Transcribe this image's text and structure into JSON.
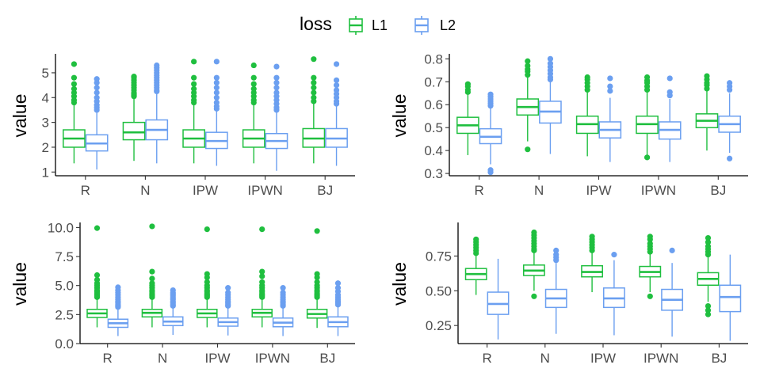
{
  "legend": {
    "title": "loss",
    "entries": [
      {
        "label": "L1",
        "color": "#1fbf3f"
      },
      {
        "label": "L2",
        "color": "#6b9ff0"
      }
    ]
  },
  "chart_data": [
    {
      "type": "boxplot",
      "panel": "top-left",
      "ylabel": "value",
      "xlabel": "",
      "categories": [
        "R",
        "N",
        "IPW",
        "IPWN",
        "BJ"
      ],
      "ylim": [
        0.85,
        5.7
      ],
      "yticks": [
        1,
        2,
        3,
        4,
        5
      ],
      "series": [
        {
          "name": "L1",
          "boxes": [
            {
              "q1": 2.0,
              "med": 2.35,
              "q3": 2.7,
              "lo": 1.35,
              "hi": 3.75,
              "out": [
                3.8,
                3.9,
                4.05,
                4.2,
                4.35,
                4.55,
                4.8,
                5.35
              ]
            },
            {
              "q1": 2.3,
              "med": 2.6,
              "q3": 3.0,
              "lo": 1.45,
              "hi": 4.0,
              "out": [
                4.05,
                4.1,
                4.15,
                4.2,
                4.3,
                4.4,
                4.5,
                4.6,
                4.7,
                4.8,
                4.85
              ]
            },
            {
              "q1": 2.0,
              "med": 2.35,
              "q3": 2.7,
              "lo": 1.35,
              "hi": 3.75,
              "out": [
                3.8,
                3.9,
                4.05,
                4.2,
                4.35,
                4.55,
                4.8,
                5.45
              ]
            },
            {
              "q1": 2.0,
              "med": 2.35,
              "q3": 2.7,
              "lo": 1.35,
              "hi": 3.75,
              "out": [
                3.8,
                3.9,
                4.05,
                4.2,
                4.35,
                4.55,
                4.8,
                5.3
              ]
            },
            {
              "q1": 2.0,
              "med": 2.35,
              "q3": 2.75,
              "lo": 1.35,
              "hi": 3.8,
              "out": [
                3.85,
                4.0,
                4.2,
                4.4,
                4.6,
                4.8,
                5.55
              ]
            }
          ]
        },
        {
          "name": "L2",
          "boxes": [
            {
              "q1": 1.85,
              "med": 2.15,
              "q3": 2.5,
              "lo": 1.1,
              "hi": 3.45,
              "out": [
                3.5,
                3.6,
                3.7,
                3.85,
                4.0,
                4.2,
                4.4,
                4.6,
                4.75
              ]
            },
            {
              "q1": 2.3,
              "med": 2.7,
              "q3": 3.1,
              "lo": 1.35,
              "hi": 4.2,
              "out": [
                4.25,
                4.3,
                4.4,
                4.5,
                4.6,
                4.7,
                4.8,
                4.9,
                5.0,
                5.1,
                5.2,
                5.3
              ]
            },
            {
              "q1": 1.95,
              "med": 2.25,
              "q3": 2.6,
              "lo": 1.25,
              "hi": 3.5,
              "out": [
                3.55,
                3.65,
                3.8,
                4.0,
                4.2,
                4.4,
                4.6,
                4.8,
                5.45
              ]
            },
            {
              "q1": 1.95,
              "med": 2.25,
              "q3": 2.55,
              "lo": 1.05,
              "hi": 3.45,
              "out": [
                3.5,
                3.6,
                3.75,
                3.9,
                4.05,
                4.2,
                4.4,
                4.6,
                4.8,
                5.25
              ]
            },
            {
              "q1": 2.0,
              "med": 2.35,
              "q3": 2.75,
              "lo": 1.25,
              "hi": 3.7,
              "out": [
                3.75,
                3.85,
                4.0,
                4.15,
                4.3,
                4.5,
                4.7,
                5.35
              ]
            }
          ]
        }
      ]
    },
    {
      "type": "boxplot",
      "panel": "top-right",
      "ylabel": "value",
      "xlabel": "",
      "categories": [
        "R",
        "N",
        "IPW",
        "IPWN",
        "BJ"
      ],
      "ylim": [
        0.29,
        0.815
      ],
      "yticks": [
        0.3,
        0.4,
        0.5,
        0.6,
        0.7,
        0.8
      ],
      "series": [
        {
          "name": "L1",
          "boxes": [
            {
              "q1": 0.475,
              "med": 0.51,
              "q3": 0.545,
              "lo": 0.38,
              "hi": 0.645,
              "out": [
                0.655,
                0.665,
                0.68,
                0.69
              ]
            },
            {
              "q1": 0.555,
              "med": 0.59,
              "q3": 0.625,
              "lo": 0.44,
              "hi": 0.725,
              "out": [
                0.73,
                0.745,
                0.755,
                0.77,
                0.79,
                0.405
              ]
            },
            {
              "q1": 0.475,
              "med": 0.515,
              "q3": 0.55,
              "lo": 0.375,
              "hi": 0.655,
              "out": [
                0.665,
                0.68,
                0.695,
                0.71,
                0.72
              ]
            },
            {
              "q1": 0.475,
              "med": 0.515,
              "q3": 0.55,
              "lo": 0.38,
              "hi": 0.655,
              "out": [
                0.665,
                0.68,
                0.695,
                0.705,
                0.72,
                0.37
              ]
            },
            {
              "q1": 0.5,
              "med": 0.53,
              "q3": 0.56,
              "lo": 0.4,
              "hi": 0.66,
              "out": [
                0.67,
                0.685,
                0.695,
                0.71,
                0.725
              ]
            }
          ]
        },
        {
          "name": "L2",
          "boxes": [
            {
              "q1": 0.43,
              "med": 0.46,
              "q3": 0.495,
              "lo": 0.34,
              "hi": 0.585,
              "out": [
                0.595,
                0.605,
                0.615,
                0.625,
                0.635,
                0.645,
                0.315,
                0.305
              ]
            },
            {
              "q1": 0.52,
              "med": 0.57,
              "q3": 0.615,
              "lo": 0.385,
              "hi": 0.7,
              "out": [
                0.71,
                0.72,
                0.735,
                0.75,
                0.765,
                0.78,
                0.8
              ]
            },
            {
              "q1": 0.455,
              "med": 0.49,
              "q3": 0.525,
              "lo": 0.35,
              "hi": 0.63,
              "out": [
                0.66,
                0.68,
                0.715
              ]
            },
            {
              "q1": 0.45,
              "med": 0.49,
              "q3": 0.525,
              "lo": 0.35,
              "hi": 0.625,
              "out": [
                0.64,
                0.655,
                0.715
              ]
            },
            {
              "q1": 0.48,
              "med": 0.515,
              "q3": 0.55,
              "lo": 0.39,
              "hi": 0.65,
              "out": [
                0.665,
                0.68,
                0.695,
                0.365
              ]
            }
          ]
        }
      ]
    },
    {
      "type": "boxplot",
      "panel": "bottom-left",
      "ylabel": "value",
      "xlabel": "",
      "categories": [
        "R",
        "N",
        "IPW",
        "IPWN",
        "BJ"
      ],
      "ylim": [
        0,
        10.3
      ],
      "yticks": [
        0.0,
        2.5,
        5.0,
        7.5,
        10.0
      ],
      "tick_labels": [
        "0.0",
        "2.5",
        "5.0",
        "7.5",
        "10.0"
      ],
      "series": [
        {
          "name": "L1",
          "boxes": [
            {
              "q1": 2.25,
              "med": 2.6,
              "q3": 2.95,
              "lo": 1.4,
              "hi": 3.95,
              "out": [
                4.0,
                4.1,
                4.2,
                4.3,
                4.45,
                4.6,
                4.8,
                5.0,
                5.2,
                5.5,
                5.9,
                9.95
              ]
            },
            {
              "q1": 2.3,
              "med": 2.65,
              "q3": 2.95,
              "lo": 1.4,
              "hi": 3.95,
              "out": [
                4.0,
                4.1,
                4.2,
                4.3,
                4.45,
                4.6,
                4.8,
                5.0,
                5.2,
                5.6,
                6.2,
                10.1
              ]
            },
            {
              "q1": 2.25,
              "med": 2.6,
              "q3": 2.95,
              "lo": 1.4,
              "hi": 3.95,
              "out": [
                4.0,
                4.1,
                4.2,
                4.3,
                4.45,
                4.6,
                4.8,
                5.0,
                5.3,
                5.7,
                6.0,
                9.85
              ]
            },
            {
              "q1": 2.3,
              "med": 2.65,
              "q3": 2.95,
              "lo": 1.4,
              "hi": 3.95,
              "out": [
                4.0,
                4.1,
                4.2,
                4.3,
                4.45,
                4.6,
                4.8,
                5.0,
                5.3,
                5.8,
                6.2,
                9.85
              ]
            },
            {
              "q1": 2.2,
              "med": 2.55,
              "q3": 2.95,
              "lo": 1.35,
              "hi": 3.95,
              "out": [
                4.0,
                4.1,
                4.2,
                4.3,
                4.45,
                4.6,
                4.8,
                5.0,
                5.3,
                5.7,
                6.0,
                9.7
              ]
            }
          ]
        },
        {
          "name": "L2",
          "boxes": [
            {
              "q1": 1.4,
              "med": 1.75,
              "q3": 2.1,
              "lo": 0.65,
              "hi": 3.1,
              "out": [
                3.15,
                3.25,
                3.35,
                3.5,
                3.65,
                3.8,
                4.0,
                4.2,
                4.4,
                4.6,
                4.85
              ]
            },
            {
              "q1": 1.55,
              "med": 1.9,
              "q3": 2.3,
              "lo": 0.75,
              "hi": 3.2,
              "out": [
                3.25,
                3.35,
                3.5,
                3.65,
                3.8,
                3.95,
                4.1,
                4.25,
                4.4,
                4.6
              ]
            },
            {
              "q1": 1.5,
              "med": 1.85,
              "q3": 2.2,
              "lo": 0.7,
              "hi": 3.2,
              "out": [
                3.25,
                3.35,
                3.5,
                3.65,
                3.8,
                4.0,
                4.2,
                4.4,
                4.8
              ]
            },
            {
              "q1": 1.45,
              "med": 1.8,
              "q3": 2.2,
              "lo": 0.65,
              "hi": 3.2,
              "out": [
                3.25,
                3.35,
                3.5,
                3.65,
                3.8,
                4.0,
                4.2,
                4.4,
                4.8
              ]
            },
            {
              "q1": 1.45,
              "med": 1.85,
              "q3": 2.3,
              "lo": 0.65,
              "hi": 3.3,
              "out": [
                3.35,
                3.5,
                3.65,
                3.8,
                4.0,
                4.2,
                4.5,
                4.8,
                5.2
              ]
            }
          ]
        }
      ]
    },
    {
      "type": "boxplot",
      "panel": "bottom-right",
      "ylabel": "value",
      "xlabel": "",
      "categories": [
        "R",
        "N",
        "IPW",
        "IPWN",
        "BJ"
      ],
      "ylim": [
        0.12,
        0.98
      ],
      "yticks": [
        0.25,
        0.5,
        0.75
      ],
      "tick_labels": [
        "0.25",
        "0.50",
        "0.75"
      ],
      "series": [
        {
          "name": "L1",
          "boxes": [
            {
              "q1": 0.58,
              "med": 0.62,
              "q3": 0.66,
              "lo": 0.47,
              "hi": 0.76,
              "out": [
                0.77,
                0.79,
                0.81,
                0.83,
                0.85,
                0.87
              ]
            },
            {
              "q1": 0.61,
              "med": 0.645,
              "q3": 0.685,
              "lo": 0.5,
              "hi": 0.78,
              "out": [
                0.79,
                0.8,
                0.82,
                0.84,
                0.86,
                0.88,
                0.9,
                0.92,
                0.46
              ]
            },
            {
              "q1": 0.6,
              "med": 0.635,
              "q3": 0.68,
              "lo": 0.49,
              "hi": 0.78,
              "out": [
                0.79,
                0.81,
                0.83,
                0.85,
                0.87,
                0.89
              ]
            },
            {
              "q1": 0.6,
              "med": 0.635,
              "q3": 0.675,
              "lo": 0.49,
              "hi": 0.77,
              "out": [
                0.78,
                0.8,
                0.82,
                0.84,
                0.87,
                0.89,
                0.46
              ]
            },
            {
              "q1": 0.54,
              "med": 0.585,
              "q3": 0.63,
              "lo": 0.42,
              "hi": 0.75,
              "out": [
                0.76,
                0.78,
                0.8,
                0.82,
                0.85,
                0.88,
                0.39,
                0.36,
                0.33
              ]
            }
          ]
        },
        {
          "name": "L2",
          "boxes": [
            {
              "q1": 0.33,
              "med": 0.405,
              "q3": 0.49,
              "lo": 0.15,
              "hi": 0.73,
              "out": []
            },
            {
              "q1": 0.38,
              "med": 0.445,
              "q3": 0.51,
              "lo": 0.19,
              "hi": 0.7,
              "out": [
                0.72,
                0.74,
                0.76,
                0.79
              ]
            },
            {
              "q1": 0.38,
              "med": 0.445,
              "q3": 0.52,
              "lo": 0.18,
              "hi": 0.72,
              "out": [
                0.76
              ]
            },
            {
              "q1": 0.36,
              "med": 0.435,
              "q3": 0.51,
              "lo": 0.17,
              "hi": 0.7,
              "out": [
                0.79
              ]
            },
            {
              "q1": 0.35,
              "med": 0.455,
              "q3": 0.54,
              "lo": 0.14,
              "hi": 0.76,
              "out": []
            }
          ]
        }
      ]
    }
  ]
}
